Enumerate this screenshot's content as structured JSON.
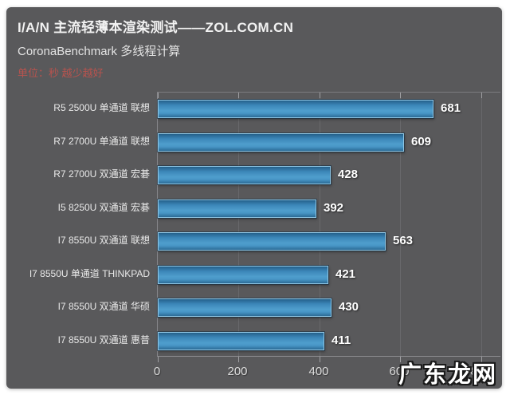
{
  "header": {
    "title": "I/A/N 主流轻薄本渲染测试——ZOL.COM.CN",
    "subtitle": "CoronaBenchmark 多线程计算",
    "unit_note": "单位：秒 越少越好"
  },
  "chart_data": {
    "type": "bar",
    "orientation": "horizontal",
    "title": "CoronaBenchmark 多线程计算",
    "unit": "秒",
    "note": "越少越好",
    "categories": [
      "R5 2500U 单通道 联想",
      "R7 2700U 单通道 联想",
      "R7 2700U 双通道 宏碁",
      "I5 8250U 双通道 宏碁",
      "I7 8550U 双通道 联想",
      "I7 8550U 单通道 THINKPAD",
      "I7 8550U 双通道 华硕",
      "I7 8550U 双通道 惠普"
    ],
    "values": [
      681,
      609,
      428,
      392,
      563,
      421,
      430,
      411
    ],
    "xlabel": "",
    "ylabel": "",
    "xlim": [
      0,
      800
    ],
    "xticks": [
      0,
      200,
      400,
      600,
      800
    ],
    "grid": true,
    "legend": false
  },
  "watermark": {
    "text": "广东龙网"
  },
  "colors": {
    "panel_bg": "#59595b",
    "title_text": "#f2f2f2",
    "unit_note_text": "#b9534e",
    "bar_main": "#4f9ecd",
    "bar_border": "#8fc6e4",
    "gridline": "#68686b",
    "value_label": "#ffffff"
  }
}
